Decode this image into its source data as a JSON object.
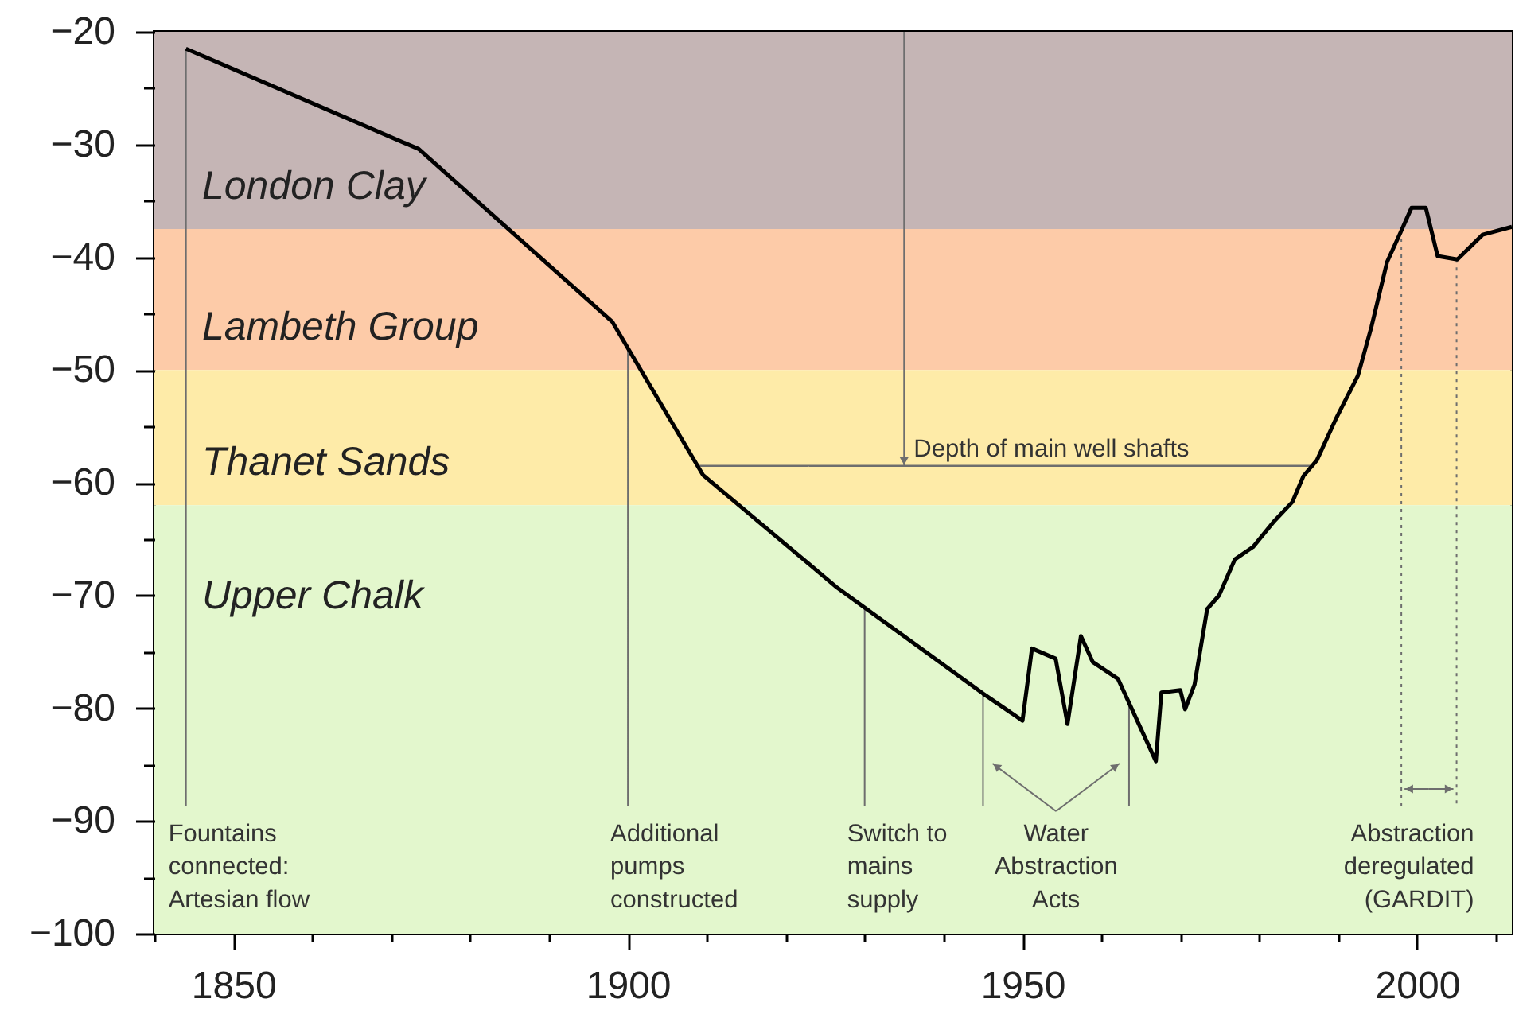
{
  "chart_data": {
    "type": "line",
    "color": "#000000",
    "x": [
      1844,
      1873.5,
      1898,
      1909.5,
      1926.5,
      1945,
      1950,
      1951.2,
      1954.2,
      1955.7,
      1957.4,
      1958.9,
      1962.1,
      1966.9,
      1967.6,
      1970,
      1970.6,
      1971.8,
      1973.4,
      1974.9,
      1976.9,
      1979.2,
      1981.9,
      1984.2,
      1985.6,
      1987.3,
      1989.8,
      1992.5,
      1994.2,
      1996.2,
      1997.9,
      1999.3,
      2001.1,
      2002.6,
      2005.1,
      2008.3,
      2012
    ],
    "values": [
      -21.5,
      -30.4,
      -45.7,
      -59.3,
      -69.3,
      -78.7,
      -81.1,
      -74.7,
      -75.6,
      -81.4,
      -73.6,
      -75.9,
      -77.4,
      -84.7,
      -78.6,
      -78.4,
      -80.1,
      -77.9,
      -71.2,
      -70,
      -66.8,
      -65.7,
      -63.4,
      -61.7,
      -59.4,
      -58,
      -54.2,
      -50.5,
      -46.2,
      -40.4,
      -37.8,
      -35.6,
      -35.6,
      -39.9,
      -40.2,
      -38,
      -37.3
    ],
    "xlim": [
      1840,
      2012
    ],
    "ylim": [
      -100,
      -20
    ],
    "xticks": [
      {
        "value": 1840,
        "label": null
      },
      1850,
      {
        "value": 1860,
        "label": null
      },
      {
        "value": 1870,
        "label": null
      },
      {
        "value": 1880,
        "label": null
      },
      {
        "value": 1890,
        "label": null
      },
      1900,
      {
        "value": 1910,
        "label": null
      },
      {
        "value": 1920,
        "label": null
      },
      {
        "value": 1930,
        "label": null
      },
      {
        "value": 1940,
        "label": null
      },
      1950,
      {
        "value": 1960,
        "label": null
      },
      {
        "value": 1970,
        "label": null
      },
      {
        "value": 1980,
        "label": null
      },
      {
        "value": 1990,
        "label": null
      },
      2000,
      {
        "value": 2010,
        "label": null
      }
    ],
    "yticks": [
      -100,
      {
        "value": -95,
        "label": null
      },
      -90,
      {
        "value": -85,
        "label": null
      },
      -80,
      {
        "value": -75,
        "label": null
      },
      -70,
      {
        "value": -65,
        "label": null
      },
      -60,
      {
        "value": -55,
        "label": null
      },
      -50,
      {
        "value": -45,
        "label": null
      },
      -40,
      {
        "value": -35,
        "label": null
      },
      -30,
      {
        "value": -25,
        "label": null
      },
      -20
    ],
    "grid": false,
    "bands": [
      {
        "axis": "y",
        "from": -37.5,
        "to": -20,
        "label": "London Clay",
        "color": "#c5b5b5"
      },
      {
        "axis": "y",
        "from": -50,
        "to": -37.5,
        "label": "Lambeth Group",
        "color": "#fdcba8"
      },
      {
        "axis": "y",
        "from": -62,
        "to": -50,
        "label": "Thanet Sands",
        "color": "#feeba8"
      },
      {
        "axis": "y",
        "from": -100,
        "to": -62,
        "label": "Upper Chalk",
        "color": "#e3f7cd"
      }
    ],
    "ref_lines": [
      {
        "axis": "x",
        "value": 1844,
        "label": "Fountains\nconnected:\nArtesian flow",
        "color": "#6e6e6e"
      },
      {
        "axis": "x",
        "value": 1900,
        "label": "Additional\npumps\nconstructed",
        "color": "#6e6e6e"
      },
      {
        "axis": "x",
        "value": 1930,
        "label": "Switch to\nmains\nsupply",
        "color": "#6e6e6e"
      },
      {
        "axis": "x",
        "value": 1945,
        "color": "#6e6e6e"
      },
      {
        "axis": "x",
        "value": 1963.5,
        "color": "#6e6e6e"
      },
      {
        "axis": "x",
        "value": 1998,
        "color": "#6e6e6e",
        "line_style": "dotted"
      },
      {
        "axis": "x",
        "value": 2005,
        "color": "#6e6e6e",
        "line_style": "dotted"
      },
      {
        "axis": "y",
        "value": -58.5,
        "color": "#6e6e6e"
      }
    ],
    "annotations": [
      {
        "text": "Depth of main well shafts",
        "x": 1935,
        "y": -58.5
      },
      "Water\nAbstraction\nActs",
      "Abstraction\nderegulated\n(GARDIT)"
    ]
  }
}
